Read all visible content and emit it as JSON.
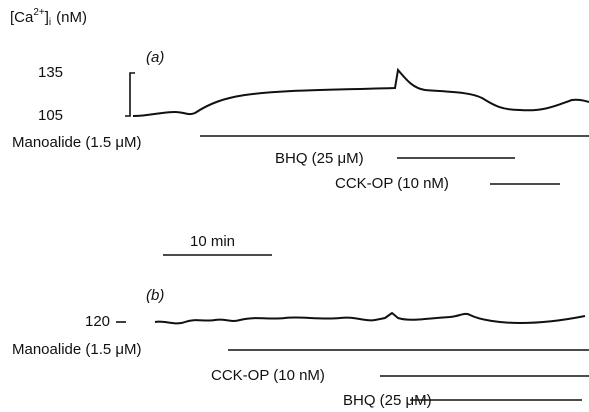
{
  "y_axis_label": {
    "base": "[Ca",
    "sup": "2+",
    "close": "]",
    "sub": "i",
    "unit": "(nM)"
  },
  "panel_a": {
    "label": "(a)",
    "scale_top": "135",
    "scale_bottom": "105",
    "treatments": [
      "Manoalide (1.5 μM)",
      "BHQ (25 μM)",
      "CCK-OP (10 nM)"
    ]
  },
  "time_scale": "10 min",
  "panel_b": {
    "label": "(b)",
    "level": "120",
    "treatments": [
      "Manoalide (1.5 μM)",
      "CCK-OP (10 nM)",
      "BHQ (25 μM)"
    ]
  }
}
